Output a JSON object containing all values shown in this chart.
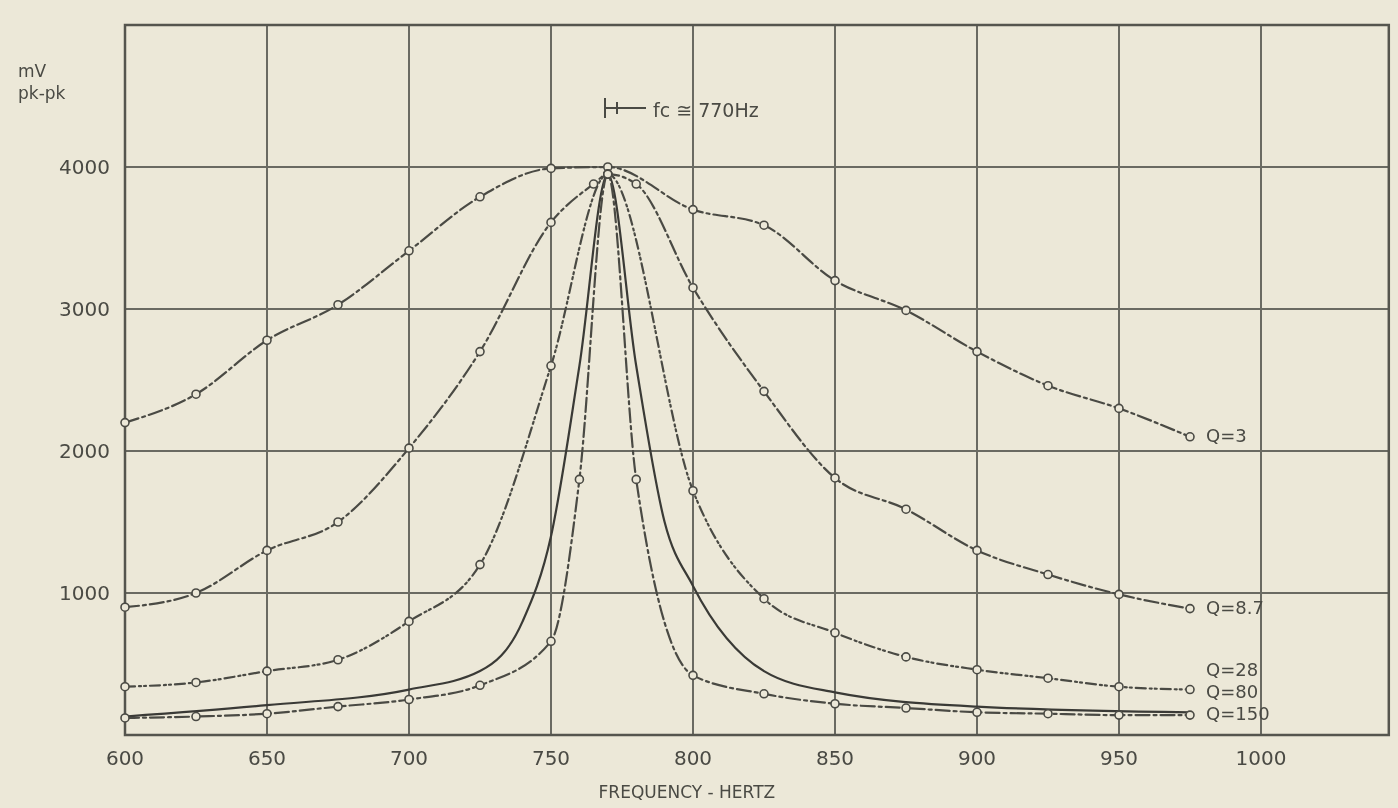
{
  "chart_data": {
    "type": "line",
    "xlabel": "FREQUENCY - HERTZ",
    "ylabel": "mV pk-pk",
    "xlim": [
      600,
      1045
    ],
    "xticks": [
      600,
      650,
      700,
      750,
      800,
      850,
      900,
      950,
      1000
    ],
    "ylim": [
      0,
      5000
    ],
    "yticks": [
      1000,
      2000,
      3000,
      4000
    ],
    "grid": true,
    "annotations": [
      "fc ≅ 770Hz"
    ],
    "series": [
      {
        "name": "Q=3",
        "color": "#4a4a44",
        "line_style": "dashed",
        "marker": "circle",
        "x": [
          600,
          625,
          650,
          675,
          700,
          725,
          750,
          770,
          800,
          825,
          850,
          875,
          900,
          925,
          950,
          975
        ],
        "values": [
          2200,
          2400,
          2780,
          3030,
          3410,
          3790,
          3990,
          4000,
          3700,
          3590,
          3200,
          2990,
          2700,
          2460,
          2300,
          2100
        ]
      },
      {
        "name": "Q=8.7",
        "color": "#4a4a44",
        "line_style": "dashed",
        "marker": "circle",
        "x": [
          600,
          625,
          650,
          675,
          700,
          725,
          750,
          765,
          770,
          780,
          800,
          825,
          850,
          875,
          900,
          925,
          950,
          975
        ],
        "values": [
          900,
          1000,
          1300,
          1500,
          2020,
          2700,
          3610,
          3880,
          3950,
          3880,
          3150,
          2420,
          1810,
          1590,
          1300,
          1130,
          990,
          890
        ]
      },
      {
        "name": "Q=28",
        "color": "#4a4a44",
        "line_style": "dotted",
        "marker": "circle",
        "x": [
          600,
          625,
          650,
          675,
          700,
          725,
          750,
          770,
          800,
          825,
          850,
          875,
          900,
          925,
          950,
          975
        ],
        "values": [
          340,
          370,
          450,
          530,
          800,
          1200,
          2600,
          3950,
          1720,
          960,
          720,
          550,
          460,
          400,
          340,
          320
        ]
      },
      {
        "name": "Q=80",
        "color": "#3a3a36",
        "line_style": "solid",
        "marker": "none",
        "x": [
          600,
          650,
          700,
          725,
          740,
          750,
          760,
          770,
          780,
          790,
          800,
          825,
          850,
          900,
          975
        ],
        "values": [
          130,
          210,
          320,
          450,
          800,
          1400,
          2600,
          3950,
          2600,
          1500,
          1050,
          450,
          300,
          200,
          160
        ]
      },
      {
        "name": "Q=150",
        "color": "#4a4a44",
        "line_style": "dashed",
        "marker": "circle",
        "x": [
          600,
          625,
          650,
          675,
          700,
          725,
          750,
          760,
          770,
          780,
          800,
          825,
          850,
          875,
          900,
          925,
          950,
          975
        ],
        "values": [
          120,
          130,
          150,
          200,
          250,
          350,
          660,
          1800,
          3950,
          1800,
          420,
          290,
          220,
          190,
          160,
          150,
          140,
          140
        ]
      }
    ]
  }
}
